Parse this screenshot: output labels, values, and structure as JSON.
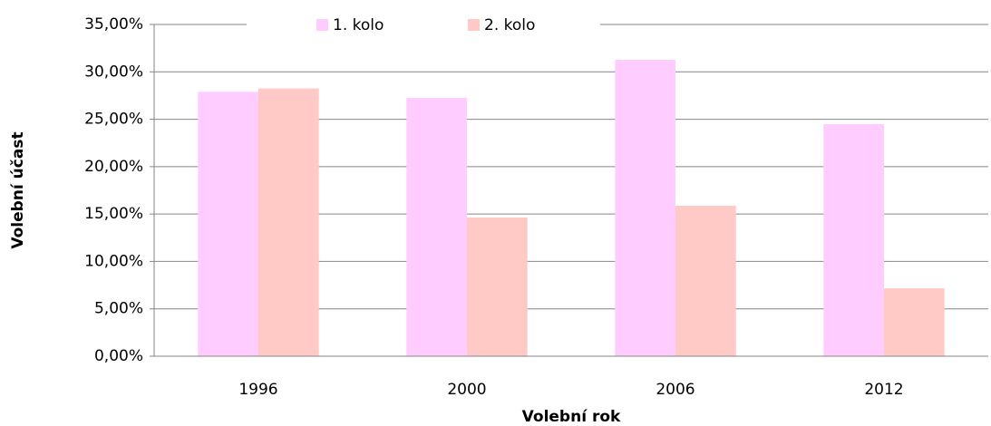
{
  "chart_data": {
    "type": "bar",
    "x_label": "Volební rok",
    "y_label": "Volební účast",
    "categories": [
      "1996",
      "2000",
      "2006",
      "2012"
    ],
    "series": [
      {
        "name": "1. kolo",
        "color": "#ffccff",
        "values": [
          27.9,
          27.25,
          31.27,
          24.48
        ]
      },
      {
        "name": "2. kolo",
        "color": "#ffc9c5",
        "values": [
          28.25,
          14.63,
          15.87,
          7.17
        ]
      }
    ],
    "ylim": [
      0,
      35
    ],
    "yticks": [
      {
        "value": 0,
        "label": "0,00%"
      },
      {
        "value": 5,
        "label": "5,00%"
      },
      {
        "value": 10,
        "label": "10,00%"
      },
      {
        "value": 15,
        "label": "15,00%"
      },
      {
        "value": 20,
        "label": "20,00%"
      },
      {
        "value": 25,
        "label": "25,00%"
      },
      {
        "value": 30,
        "label": "30,00%"
      },
      {
        "value": 35,
        "label": "35,00%"
      }
    ],
    "grid": true,
    "legend_position": "top"
  }
}
